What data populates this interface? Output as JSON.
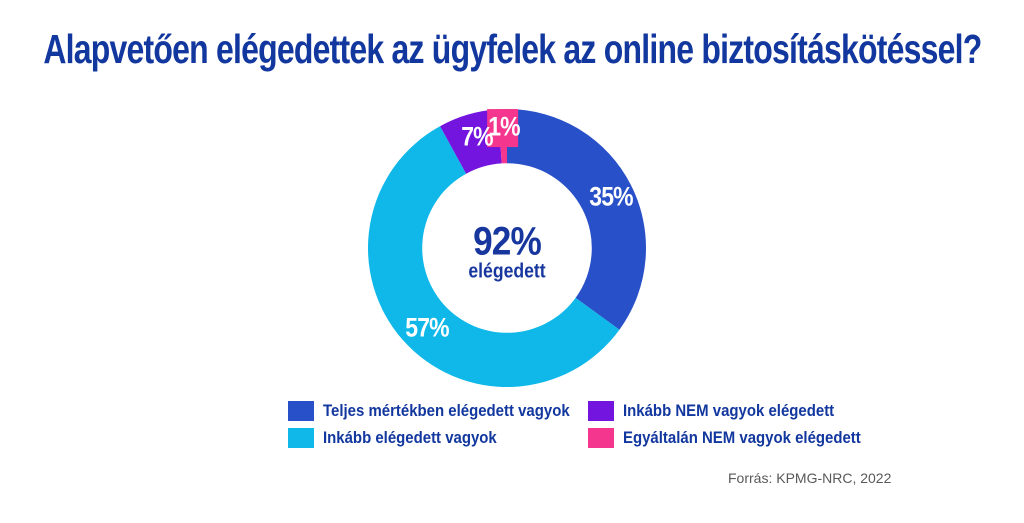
{
  "title": "Alapvetően elégedettek az ügyfelek az online biztosításkötéssel?",
  "chart_data": {
    "type": "pie",
    "subtype": "donut",
    "title": "Alapvetően elégedettek az ügyfelek az online biztosításkötéssel?",
    "categories": [
      "Teljes mértékben elégedett vagyok",
      "Inkább elégedett vagyok",
      "Inkább NEM vagyok elégedett",
      "Egyáltalán NEM vagyok elégedett"
    ],
    "values": [
      35,
      57,
      7,
      1
    ],
    "labels": [
      "35%",
      "57%",
      "7%",
      "1%"
    ],
    "colors": [
      "#2850C8",
      "#0FB8E9",
      "#7414DF",
      "#F5368F"
    ],
    "start_angle_deg": 0,
    "direction": "clockwise",
    "inner_radius_ratio": 0.61,
    "callout_segment_index": 3,
    "center_label": {
      "value": "92%",
      "caption": "elégedett"
    },
    "legend_position": "bottom"
  },
  "source": "Forrás: KPMG-NRC, 2022"
}
